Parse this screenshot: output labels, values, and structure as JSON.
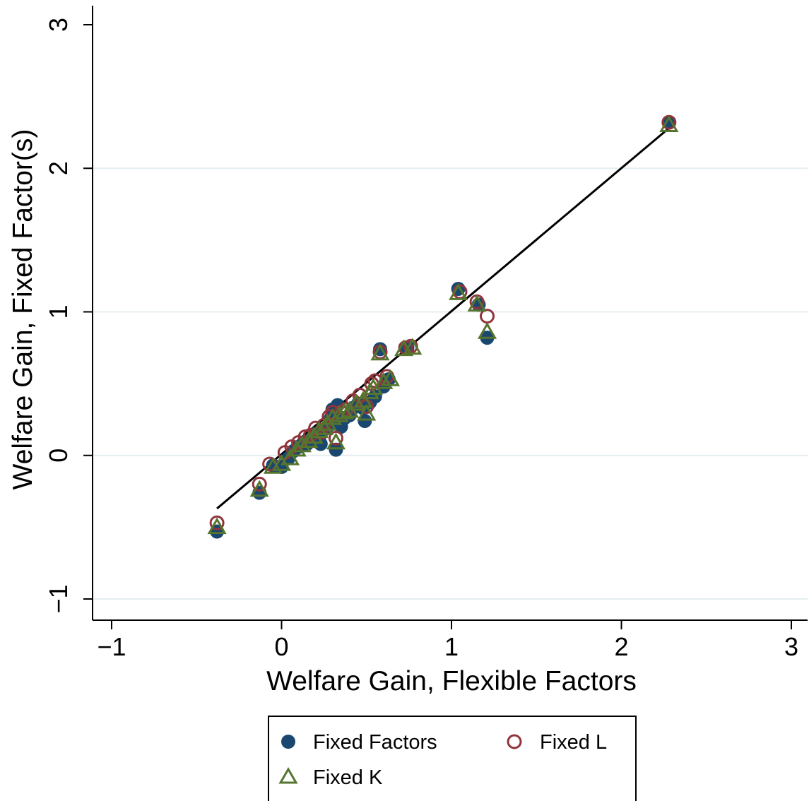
{
  "chart_data": {
    "type": "scatter",
    "xlabel": "Welfare Gain, Flexible Factors",
    "ylabel": "Welfare Gain, Fixed Factor(s)",
    "xlim": [
      -1.1,
      3.05
    ],
    "ylim": [
      -1.15,
      3.12
    ],
    "xticks": [
      -1,
      0,
      1,
      2,
      3
    ],
    "yticks": [
      -1,
      0,
      1,
      2,
      3
    ],
    "xtick_labels": [
      "−1",
      "0",
      "1",
      "2",
      "3"
    ],
    "ytick_labels": [
      "−1",
      "0",
      "1",
      "2",
      "3"
    ],
    "grid": "horizontal",
    "legend_position": "bottom",
    "colors": {
      "fixed_factors": "#1a476f",
      "fixed_l": "#90353b",
      "fixed_k": "#55752f",
      "grid": "#e5eef0",
      "line": "#000000"
    },
    "series": [
      {
        "name": "Fixed Factors",
        "marker": "filled-circle",
        "points": [
          [
            -0.38,
            -0.53
          ],
          [
            -0.13,
            -0.26
          ],
          [
            -0.05,
            -0.07
          ],
          [
            0.0,
            -0.08
          ],
          [
            0.04,
            -0.02
          ],
          [
            0.07,
            0.03
          ],
          [
            0.1,
            0.06
          ],
          [
            0.13,
            0.09
          ],
          [
            0.15,
            0.08
          ],
          [
            0.18,
            0.12
          ],
          [
            0.2,
            0.15
          ],
          [
            0.22,
            0.12
          ],
          [
            0.23,
            0.08
          ],
          [
            0.25,
            0.18
          ],
          [
            0.27,
            0.2
          ],
          [
            0.29,
            0.26
          ],
          [
            0.3,
            0.32
          ],
          [
            0.31,
            0.29
          ],
          [
            0.32,
            0.04
          ],
          [
            0.33,
            0.35
          ],
          [
            0.35,
            0.2
          ],
          [
            0.37,
            0.26
          ],
          [
            0.4,
            0.28
          ],
          [
            0.42,
            0.33
          ],
          [
            0.45,
            0.36
          ],
          [
            0.48,
            0.33
          ],
          [
            0.49,
            0.24
          ],
          [
            0.52,
            0.37
          ],
          [
            0.55,
            0.41
          ],
          [
            0.58,
            0.74
          ],
          [
            0.6,
            0.48
          ],
          [
            0.63,
            0.53
          ],
          [
            0.74,
            0.75
          ],
          [
            1.04,
            1.16
          ],
          [
            1.16,
            1.05
          ],
          [
            1.21,
            0.82
          ],
          [
            2.28,
            2.32
          ]
        ]
      },
      {
        "name": "Fixed L",
        "marker": "hollow-circle",
        "points": [
          [
            -0.38,
            -0.47
          ],
          [
            -0.13,
            -0.2
          ],
          [
            -0.07,
            -0.06
          ],
          [
            0.02,
            0.02
          ],
          [
            0.06,
            0.06
          ],
          [
            0.1,
            0.09
          ],
          [
            0.14,
            0.13
          ],
          [
            0.17,
            0.14
          ],
          [
            0.2,
            0.19
          ],
          [
            0.23,
            0.16
          ],
          [
            0.25,
            0.21
          ],
          [
            0.28,
            0.27
          ],
          [
            0.3,
            0.3
          ],
          [
            0.32,
            0.12
          ],
          [
            0.35,
            0.3
          ],
          [
            0.38,
            0.32
          ],
          [
            0.42,
            0.38
          ],
          [
            0.46,
            0.42
          ],
          [
            0.5,
            0.34
          ],
          [
            0.53,
            0.5
          ],
          [
            0.55,
            0.52
          ],
          [
            0.58,
            0.72
          ],
          [
            0.62,
            0.55
          ],
          [
            0.73,
            0.75
          ],
          [
            0.76,
            0.76
          ],
          [
            1.05,
            1.14
          ],
          [
            1.15,
            1.07
          ],
          [
            1.21,
            0.97
          ],
          [
            2.28,
            2.32
          ]
        ]
      },
      {
        "name": "Fixed K",
        "marker": "hollow-triangle",
        "points": [
          [
            -0.38,
            -0.5
          ],
          [
            -0.13,
            -0.24
          ],
          [
            -0.05,
            -0.08
          ],
          [
            0.0,
            -0.06
          ],
          [
            0.05,
            -0.02
          ],
          [
            0.09,
            0.04
          ],
          [
            0.12,
            0.07
          ],
          [
            0.16,
            0.1
          ],
          [
            0.19,
            0.13
          ],
          [
            0.22,
            0.17
          ],
          [
            0.25,
            0.19
          ],
          [
            0.27,
            0.22
          ],
          [
            0.3,
            0.26
          ],
          [
            0.32,
            0.09
          ],
          [
            0.34,
            0.28
          ],
          [
            0.37,
            0.3
          ],
          [
            0.4,
            0.31
          ],
          [
            0.44,
            0.36
          ],
          [
            0.48,
            0.38
          ],
          [
            0.5,
            0.29
          ],
          [
            0.52,
            0.44
          ],
          [
            0.54,
            0.47
          ],
          [
            0.58,
            0.71
          ],
          [
            0.6,
            0.51
          ],
          [
            0.64,
            0.53
          ],
          [
            0.72,
            0.74
          ],
          [
            0.77,
            0.75
          ],
          [
            1.04,
            1.13
          ],
          [
            1.15,
            1.05
          ],
          [
            1.21,
            0.86
          ],
          [
            2.28,
            2.3
          ]
        ]
      }
    ],
    "line": {
      "name": "",
      "x": [
        -0.38,
        2.28
      ],
      "y": [
        -0.37,
        2.28
      ]
    }
  }
}
